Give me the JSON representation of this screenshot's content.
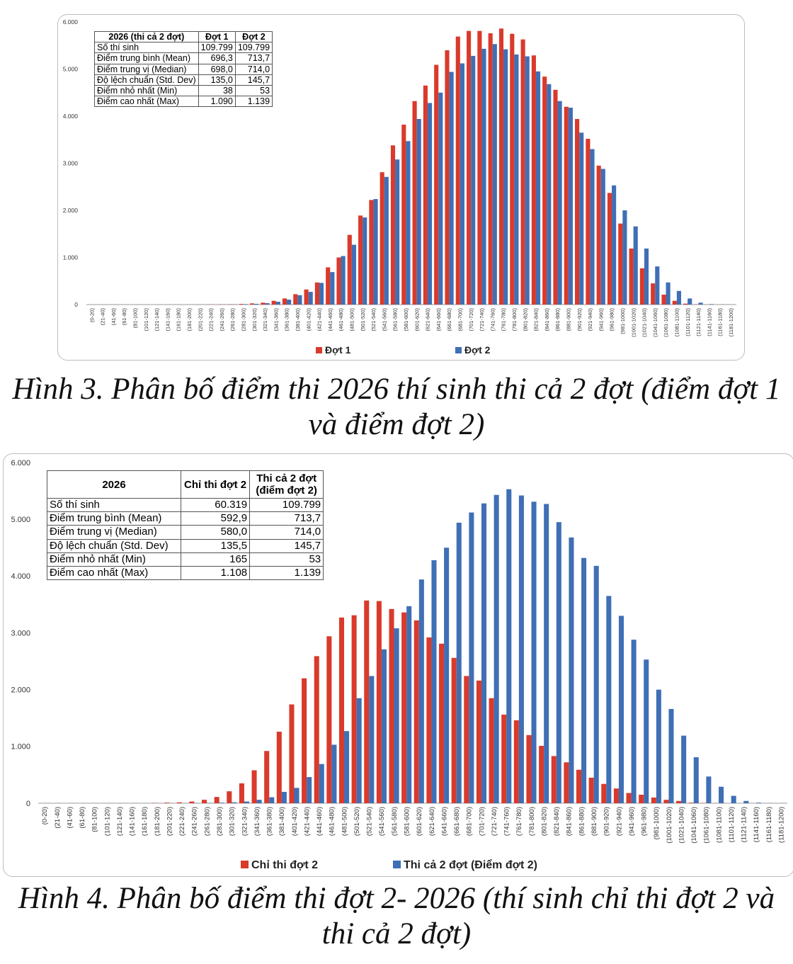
{
  "figure1": {
    "caption": "Hình 3. Phân bố điểm thi 2026 thí sinh thi cả 2 đợt (điểm đợt 1 và điểm đợt 2)",
    "table": {
      "header": [
        "2026 (thi cả 2 đợt)",
        "Đợt 1",
        "Đợt 2"
      ],
      "rows": [
        [
          "Số thí sinh",
          "109.799",
          "109.799"
        ],
        [
          "Điểm trung bình (Mean)",
          "696,3",
          "713,7"
        ],
        [
          "Điểm trung vị (Median)",
          "698,0",
          "714,0"
        ],
        [
          "Độ lệch chuẩn (Std. Dev)",
          "135,0",
          "145,7"
        ],
        [
          "Điểm nhỏ nhất (Min)",
          "38",
          "53"
        ],
        [
          "Điểm cao nhất (Max)",
          "1.090",
          "1.139"
        ]
      ]
    }
  },
  "figure2": {
    "caption": "Hình 4. Phân bố điểm thi đợt 2- 2026 (thí sinh chỉ thi đợt 2 và thi cả 2 đợt)",
    "table": {
      "header": [
        "2026",
        "Chỉ thi đợt 2",
        "Thi cả 2 đợt (điểm đợt 2)"
      ],
      "rows": [
        [
          "Số thí sinh",
          "60.319",
          "109.799"
        ],
        [
          "Điểm trung bình (Mean)",
          "592,9",
          "713,7"
        ],
        [
          "Điểm trung vị (Median)",
          "580,0",
          "714,0"
        ],
        [
          "Độ lệch chuẩn (Std. Dev)",
          "135,5",
          "145,7"
        ],
        [
          "Điểm nhỏ nhất (Min)",
          "165",
          "53"
        ],
        [
          "Điểm cao nhất (Max)",
          "1.108",
          "1.139"
        ]
      ]
    }
  },
  "colors": {
    "red": "#d93a2b",
    "blue": "#3f6fb5"
  },
  "chart_data": [
    {
      "type": "bar",
      "ylim": [
        0,
        6000
      ],
      "y_ticks": [
        "0",
        "1.000",
        "2.000",
        "3.000",
        "4.000",
        "5.000",
        "6.000"
      ],
      "legend_position": "bottom",
      "grid": false,
      "categories": [
        "(0-20)",
        "(21-40)",
        "(41-60)",
        "(61-80)",
        "(81-100)",
        "(101-120)",
        "(121-140)",
        "(141-160)",
        "(161-180)",
        "(181-200)",
        "(201-220)",
        "(221-240)",
        "(241-260)",
        "(261-280)",
        "(281-300)",
        "(301-320)",
        "(321-340)",
        "(341-360)",
        "(361-380)",
        "(381-400)",
        "(401-420)",
        "(421-440)",
        "(441-460)",
        "(461-480)",
        "(481-500)",
        "(501-520)",
        "(521-540)",
        "(541-560)",
        "(561-580)",
        "(581-600)",
        "(601-620)",
        "(621-640)",
        "(641-660)",
        "(661-680)",
        "(681-700)",
        "(701-720)",
        "(721-740)",
        "(741-760)",
        "(761-780)",
        "(781-800)",
        "(801-820)",
        "(821-840)",
        "(841-860)",
        "(861-880)",
        "(881-900)",
        "(901-920)",
        "(921-940)",
        "(941-960)",
        "(961-980)",
        "(981-1000)",
        "(1001-1020)",
        "(1021-1040)",
        "(1041-1060)",
        "(1061-1080)",
        "(1081-1100)",
        "(1101-1120)",
        "(1121-1140)",
        "(1141-1160)",
        "(1161-1180)",
        "(1181-1200)"
      ],
      "series": [
        {
          "name": "Đợt 1",
          "color": "#d93a2b",
          "values": [
            1,
            1,
            1,
            1,
            1,
            1,
            1,
            1,
            2,
            2,
            3,
            4,
            5,
            8,
            14,
            25,
            40,
            80,
            130,
            220,
            320,
            470,
            790,
            1000,
            1480,
            1890,
            2220,
            2810,
            3380,
            3820,
            4320,
            4650,
            5090,
            5400,
            5690,
            5810,
            5810,
            5760,
            5860,
            5750,
            5630,
            5290,
            4840,
            4560,
            4200,
            3940,
            3520,
            2950,
            2370,
            1720,
            1190,
            770,
            450,
            210,
            80,
            20,
            5,
            2,
            1,
            1
          ]
        },
        {
          "name": "Đợt 2",
          "color": "#3f6fb5",
          "values": [
            1,
            2,
            2,
            2,
            2,
            2,
            2,
            2,
            2,
            2,
            2,
            3,
            5,
            6,
            10,
            16,
            30,
            60,
            105,
            200,
            270,
            460,
            690,
            1030,
            1270,
            1850,
            2240,
            2710,
            3080,
            3470,
            3940,
            4280,
            4500,
            4940,
            5120,
            5280,
            5430,
            5530,
            5420,
            5310,
            5270,
            4950,
            4680,
            4320,
            4180,
            3650,
            3300,
            2880,
            2530,
            2000,
            1660,
            1190,
            810,
            470,
            290,
            130,
            40,
            10,
            3,
            2
          ]
        }
      ]
    },
    {
      "type": "bar",
      "ylim": [
        0,
        6000
      ],
      "y_ticks": [
        "0",
        "1.000",
        "2.000",
        "3.000",
        "4.000",
        "5.000",
        "6.000"
      ],
      "legend_position": "bottom",
      "grid": false,
      "categories": [
        "(0-20)",
        "(21-40)",
        "(41-60)",
        "(61-80)",
        "(81-100)",
        "(101-120)",
        "(121-140)",
        "(141-160)",
        "(161-180)",
        "(181-200)",
        "(201-220)",
        "(221-240)",
        "(241-260)",
        "(261-280)",
        "(281-300)",
        "(301-320)",
        "(321-340)",
        "(341-360)",
        "(361-380)",
        "(381-400)",
        "(401-420)",
        "(421-440)",
        "(441-460)",
        "(461-480)",
        "(481-500)",
        "(501-520)",
        "(521-540)",
        "(541-560)",
        "(561-580)",
        "(581-600)",
        "(601-620)",
        "(621-640)",
        "(641-660)",
        "(661-680)",
        "(681-700)",
        "(701-720)",
        "(721-740)",
        "(741-760)",
        "(761-780)",
        "(781-800)",
        "(801-820)",
        "(821-840)",
        "(841-860)",
        "(861-880)",
        "(881-900)",
        "(901-920)",
        "(921-940)",
        "(941-960)",
        "(961-980)",
        "(981-1000)",
        "(1001-1020)",
        "(1021-1040)",
        "(1041-1060)",
        "(1061-1080)",
        "(1081-1100)",
        "(1101-1120)",
        "(1121-1140)",
        "(1141-1160)",
        "(1161-1180)",
        "(1181-1200)"
      ],
      "series": [
        {
          "name": "Chỉ thi đợt 2",
          "color": "#d93a2b",
          "values": [
            0,
            0,
            0,
            0,
            0,
            0,
            0,
            0,
            0,
            5,
            10,
            15,
            30,
            60,
            110,
            210,
            350,
            580,
            920,
            1260,
            1740,
            2200,
            2590,
            2940,
            3270,
            3310,
            3570,
            3560,
            3420,
            3360,
            3220,
            2920,
            2810,
            2560,
            2240,
            2160,
            1850,
            1560,
            1460,
            1200,
            1010,
            830,
            720,
            590,
            450,
            340,
            260,
            180,
            150,
            100,
            60,
            40,
            10,
            5,
            2,
            0,
            0,
            0,
            0,
            0
          ]
        },
        {
          "name": "Thi cả 2 đợt (Điểm đợt 2)",
          "color": "#3f6fb5",
          "values": [
            1,
            2,
            2,
            2,
            2,
            2,
            2,
            2,
            2,
            2,
            2,
            3,
            5,
            6,
            10,
            16,
            30,
            60,
            105,
            200,
            270,
            460,
            690,
            1030,
            1270,
            1850,
            2240,
            2710,
            3080,
            3470,
            3940,
            4280,
            4500,
            4940,
            5120,
            5280,
            5430,
            5530,
            5420,
            5310,
            5270,
            4950,
            4680,
            4320,
            4180,
            3650,
            3300,
            2880,
            2530,
            2000,
            1660,
            1190,
            810,
            470,
            290,
            130,
            40,
            10,
            3,
            2
          ]
        }
      ]
    }
  ]
}
